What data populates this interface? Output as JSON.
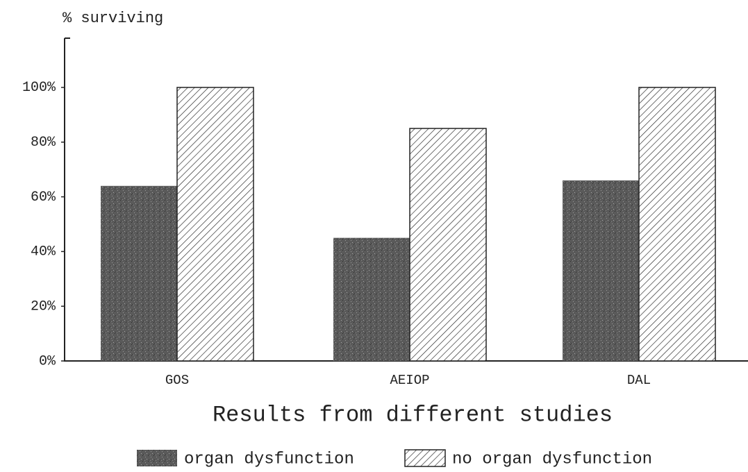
{
  "chart_data": {
    "type": "bar",
    "y_axis_label": "% surviving",
    "x_axis_label": "Results from different studies",
    "categories": [
      "GOS",
      "AEIOP",
      "DAL"
    ],
    "series": [
      {
        "name": "organ dysfunction",
        "color": "#5a5a5a",
        "pattern": "speckle",
        "values": [
          64,
          45,
          66
        ]
      },
      {
        "name": "no organ dysfunction",
        "color": "#222222",
        "pattern": "hatch",
        "values": [
          100,
          85,
          100
        ]
      }
    ],
    "ylim": [
      0,
      118
    ],
    "yticks": [
      {
        "value": 0,
        "label": "0%"
      },
      {
        "value": 20,
        "label": "20%"
      },
      {
        "value": 40,
        "label": "40%"
      },
      {
        "value": 60,
        "label": "60%"
      },
      {
        "value": 80,
        "label": "80%"
      },
      {
        "value": 100,
        "label": "100%"
      }
    ],
    "legend": "bottom"
  }
}
